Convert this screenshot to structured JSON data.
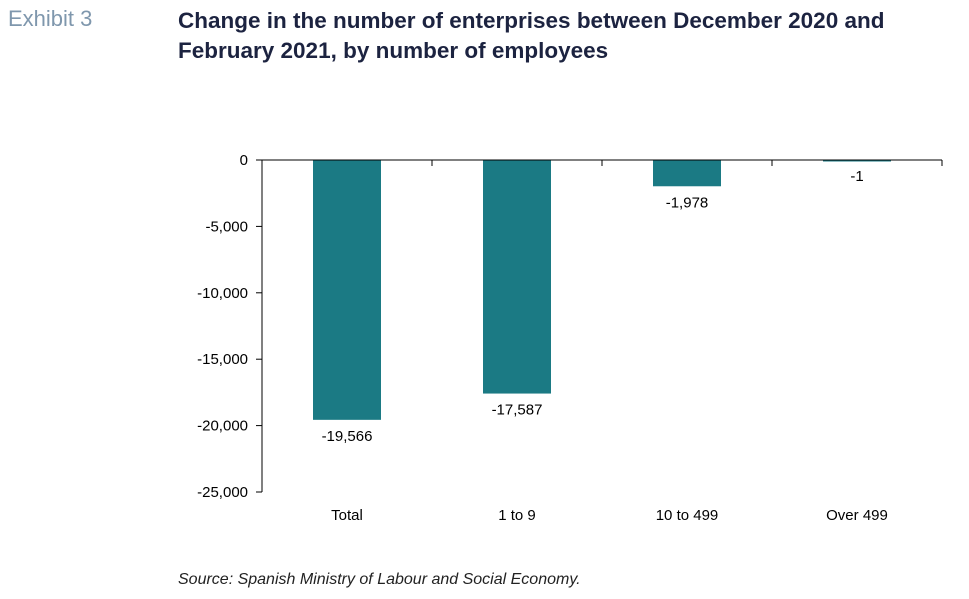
{
  "header": {
    "exhibit": "Exhibit 3",
    "title": "Change in the number of enterprises between December 2020 and February 2021, by number of employees"
  },
  "source": "Source: Spanish Ministry of Labour and Social Economy.",
  "chart_data": {
    "type": "bar",
    "categories": [
      "Total",
      "1 to 9",
      "10 to 499",
      "Over 499"
    ],
    "values": [
      -19566,
      -17587,
      -1978,
      -1
    ],
    "data_labels": [
      "-19,566",
      "-17,587",
      "-1,978",
      "-1"
    ],
    "ylim": [
      -25000,
      0
    ],
    "yticks": [
      0,
      -5000,
      -10000,
      -15000,
      -20000,
      -25000
    ],
    "ytick_labels": [
      "0",
      "-5,000",
      "-10,000",
      "-15,000",
      "-20,000",
      "-25,000"
    ],
    "bar_color": "#1b7a84",
    "grid": false,
    "legend": false
  }
}
